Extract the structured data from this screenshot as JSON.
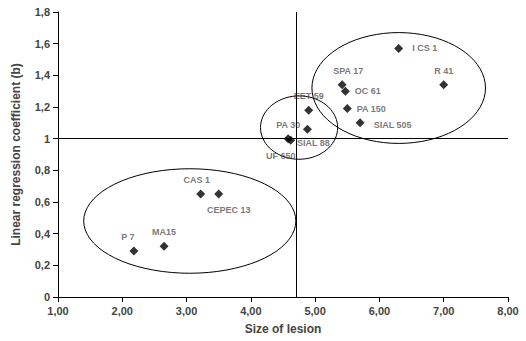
{
  "chart_data": {
    "type": "scatter",
    "x_label": "Size of lesion",
    "y_label": "Linear regression coefficient (b)",
    "points": [
      {
        "label": "P 7",
        "x": 2.18,
        "y": 0.29
      },
      {
        "label": "MA15",
        "x": 2.65,
        "y": 0.32
      },
      {
        "label": "CAS 1",
        "x": 3.22,
        "y": 0.65
      },
      {
        "label": "CEPEC 13",
        "x": 3.5,
        "y": 0.65
      },
      {
        "label": "PA 30",
        "x": 4.58,
        "y": 1.0
      },
      {
        "label": "UF 650",
        "x": 4.62,
        "y": 0.99
      },
      {
        "label": "SIAL 88",
        "x": 4.88,
        "y": 1.06
      },
      {
        "label": "EET 59",
        "x": 4.9,
        "y": 1.18
      },
      {
        "label": "SPA 17",
        "x": 5.42,
        "y": 1.34
      },
      {
        "label": "OC 61",
        "x": 5.47,
        "y": 1.3
      },
      {
        "label": "PA 150",
        "x": 5.5,
        "y": 1.19
      },
      {
        "label": "SIAL 505",
        "x": 5.7,
        "y": 1.1
      },
      {
        "label": "I CS 1",
        "x": 6.3,
        "y": 1.57
      },
      {
        "label": "R 41",
        "x": 7.0,
        "y": 1.34
      }
    ],
    "reference_x": 4.7,
    "reference_y": 1,
    "groups": [
      {
        "cx": 3.05,
        "cy": 0.48,
        "rx": 1.65,
        "ry": 0.33
      },
      {
        "cx": 4.75,
        "cy": 1.07,
        "rx": 0.6,
        "ry": 0.2
      },
      {
        "cx": 6.3,
        "cy": 1.32,
        "rx": 1.35,
        "ry": 0.35
      }
    ],
    "color": "#000000",
    "marker": "diamond",
    "grid": false,
    "xlim": [
      1,
      8
    ],
    "xticks": [
      {
        "value": 1,
        "label": "1,00"
      },
      {
        "value": 2,
        "label": "2,00"
      },
      {
        "value": 3,
        "label": "3,00"
      },
      {
        "value": 4,
        "label": "4,00"
      },
      {
        "value": 5,
        "label": "5,00"
      },
      {
        "value": 6,
        "label": "6,00"
      },
      {
        "value": 7,
        "label": "7,00"
      },
      {
        "value": 8,
        "label": "8,00"
      }
    ],
    "ylim": [
      0,
      1.8
    ],
    "yticks": [
      0,
      {
        "value": 0.2,
        "label": "0,2"
      },
      {
        "value": 0.4,
        "label": "0,4"
      },
      {
        "value": 0.6,
        "label": "0,6"
      },
      {
        "value": 0.8,
        "label": "0,8"
      },
      1,
      {
        "value": 1.2,
        "label": "1,2"
      },
      {
        "value": 1.4,
        "label": "1,4"
      },
      {
        "value": 1.6,
        "label": "1,6"
      },
      {
        "value": 1.8,
        "label": "1,8"
      }
    ]
  }
}
